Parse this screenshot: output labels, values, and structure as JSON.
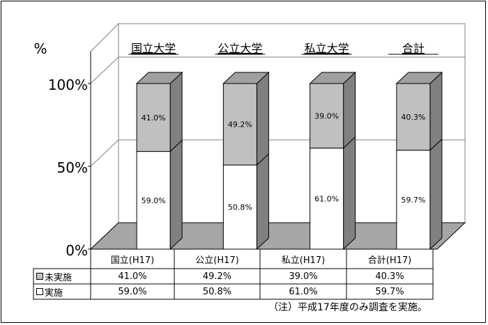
{
  "chart_data": {
    "type": "bar",
    "stacked": true,
    "three_d": true,
    "unit_label": "%",
    "ylim": [
      0,
      100
    ],
    "yticks": [
      "0%",
      "50%",
      "100%"
    ],
    "categories": [
      "国立(H17)",
      "公立(H17)",
      "私立(H17)",
      "合計(H17)"
    ],
    "group_labels": [
      "国立大学",
      "公立大学",
      "私立大学",
      "合計"
    ],
    "series": [
      {
        "name": "実施",
        "values": [
          59.0,
          50.8,
          61.0,
          59.7
        ],
        "labels": [
          "59.0%",
          "50.8%",
          "61.0%",
          "59.7%"
        ],
        "color": "#ffffff"
      },
      {
        "name": "未実施",
        "values": [
          41.0,
          49.2,
          39.0,
          40.3
        ],
        "labels": [
          "41.0%",
          "49.2%",
          "39.0%",
          "40.3%"
        ],
        "color": "#c0c0c0"
      }
    ],
    "table_rows": [
      {
        "legend": "未実施",
        "values": [
          "41.0%",
          "49.2%",
          "39.0%",
          "40.3%"
        ],
        "color": "#c0c0c0"
      },
      {
        "legend": "実施",
        "values": [
          "59.0%",
          "50.8%",
          "61.0%",
          "59.7%"
        ],
        "color": "#ffffff"
      }
    ],
    "note": "（注）平成17年度のみ調査を実施。",
    "colors": {
      "floor": "#a6a6a6",
      "side_dark": "#808080",
      "top_grey": "#a0a0a0"
    }
  }
}
